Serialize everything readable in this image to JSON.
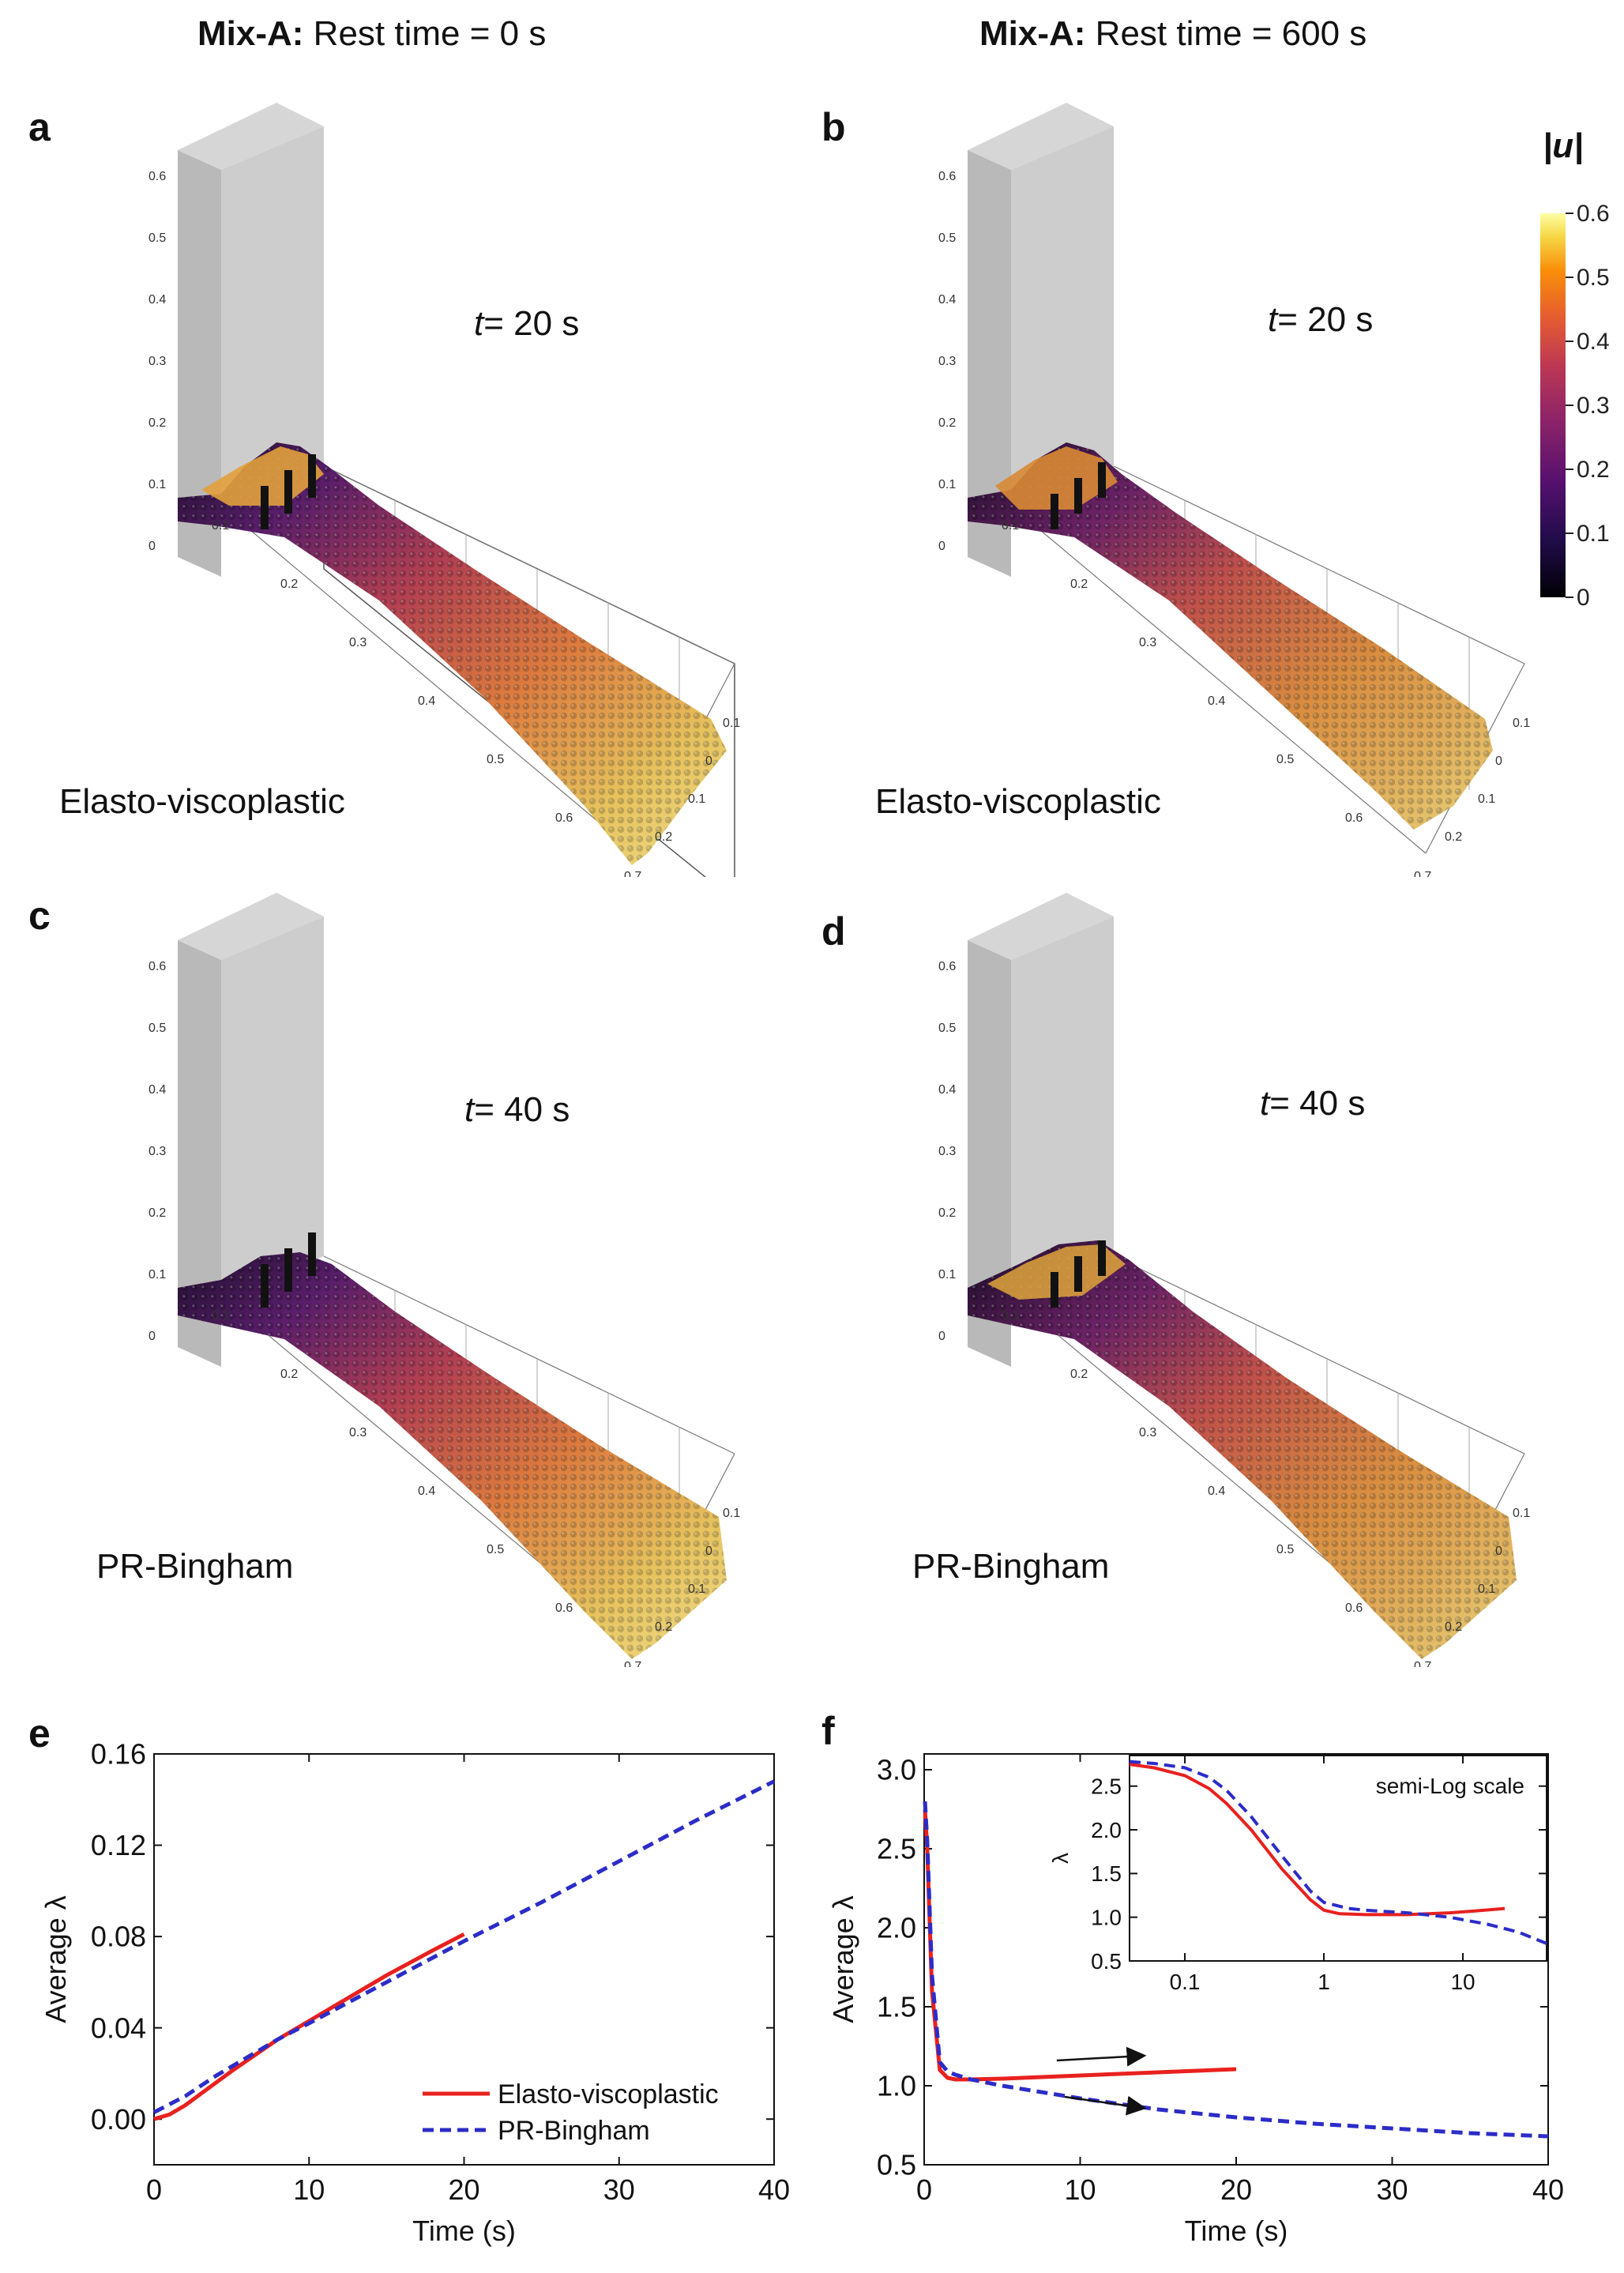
{
  "columns": {
    "left": {
      "title_bold": "Mix-A:",
      "title_rest": " Rest time = 0 s"
    },
    "right": {
      "title_bold": "Mix-A:",
      "title_rest": " Rest time = 600 s"
    }
  },
  "panels": {
    "a": {
      "letter": "a",
      "time_prefix": "t",
      "time_rest": "= 20 s",
      "model": "Elasto-viscoplastic"
    },
    "b": {
      "letter": "b",
      "time_prefix": "t",
      "time_rest": "= 20 s",
      "model": "Elasto-viscoplastic"
    },
    "c": {
      "letter": "c",
      "time_prefix": "t",
      "time_rest": "= 40 s",
      "model": "PR-Bingham"
    },
    "d": {
      "letter": "d",
      "time_prefix": "t",
      "time_rest": "= 40 s",
      "model": "PR-Bingham"
    },
    "e": {
      "letter": "e"
    },
    "f": {
      "letter": "f"
    }
  },
  "scene_axes": {
    "vertical_ticks": [
      "0.6",
      "0.5",
      "0.4",
      "0.3",
      "0.2",
      "0.1",
      "0"
    ],
    "length_ticks": [
      "0.1",
      "0.2",
      "0.3",
      "0.4",
      "0.5",
      "0.6",
      "0.7"
    ],
    "width_ticks": [
      "0.1",
      "0",
      "0.1",
      "0.2"
    ]
  },
  "colorbar": {
    "title": "|u|",
    "ticks": [
      "0.6",
      "0.5",
      "0.4",
      "0.3",
      "0.2",
      "0.1",
      "0"
    ]
  },
  "colors": {
    "red": "#e8211f",
    "blue": "#2c2cc8",
    "box": "#c9c9c9",
    "fluid_hot": "#f3d66a",
    "fluid_mid": "#c8493f",
    "fluid_cold": "#1d0f2c"
  },
  "chart_data": [
    {
      "id": "e",
      "type": "line",
      "title": "",
      "xlabel": "Time (s)",
      "ylabel": "Average λ",
      "xlim": [
        0,
        40
      ],
      "ylim": [
        -0.02,
        0.16
      ],
      "xticks": [
        0,
        10,
        20,
        30,
        40
      ],
      "yticks": [
        0.0,
        0.04,
        0.08,
        0.12,
        0.16
      ],
      "ytick_labels": [
        "0.00",
        "0.04",
        "0.08",
        "0.12",
        "0.16"
      ],
      "legend": "bottom-right",
      "series": [
        {
          "name": "Elasto-viscoplastic",
          "style": "solid",
          "color": "#e8211f",
          "x": [
            0,
            1,
            2,
            3,
            5,
            8,
            10,
            12,
            15,
            18,
            20
          ],
          "y": [
            0.0,
            0.002,
            0.006,
            0.011,
            0.021,
            0.035,
            0.043,
            0.051,
            0.063,
            0.074,
            0.081
          ]
        },
        {
          "name": "PR-Bingham",
          "style": "dashed",
          "color": "#2c2cc8",
          "x": [
            0,
            2,
            4,
            6,
            8,
            10,
            15,
            20,
            25,
            30,
            35,
            40
          ],
          "y": [
            0.003,
            0.01,
            0.019,
            0.027,
            0.035,
            0.042,
            0.06,
            0.078,
            0.095,
            0.113,
            0.131,
            0.148
          ]
        }
      ]
    },
    {
      "id": "f",
      "type": "line",
      "title": "",
      "xlabel": "Time (s)",
      "ylabel": "Average λ",
      "xlim": [
        0,
        40
      ],
      "ylim": [
        0.5,
        3.1
      ],
      "xticks": [
        0,
        10,
        20,
        30,
        40
      ],
      "yticks": [
        0.5,
        1.0,
        1.5,
        2.0,
        2.5,
        3.0
      ],
      "ytick_labels": [
        "0.5",
        "1.0",
        "1.5",
        "2.0",
        "2.5",
        "3.0"
      ],
      "series": [
        {
          "name": "Elasto-viscoplastic",
          "style": "solid",
          "color": "#e8211f",
          "x": [
            0.05,
            0.2,
            0.5,
            1.0,
            1.5,
            2,
            3,
            5,
            10,
            15,
            20
          ],
          "y": [
            2.75,
            2.5,
            1.6,
            1.1,
            1.05,
            1.04,
            1.04,
            1.045,
            1.065,
            1.085,
            1.105
          ]
        },
        {
          "name": "PR-Bingham",
          "style": "dashed",
          "color": "#2c2cc8",
          "x": [
            0.05,
            0.2,
            0.5,
            1.0,
            1.5,
            2,
            3,
            5,
            10,
            15,
            20,
            25,
            30,
            35,
            40
          ],
          "y": [
            2.8,
            2.55,
            1.7,
            1.15,
            1.09,
            1.07,
            1.04,
            1.0,
            0.92,
            0.85,
            0.8,
            0.76,
            0.73,
            0.7,
            0.68
          ]
        }
      ],
      "inset": {
        "annotation": "semi-Log scale",
        "ylabel": "λ",
        "xscale": "log",
        "xlim": [
          0.04,
          40
        ],
        "ylim": [
          0.5,
          2.85
        ],
        "xticks": [
          0.1,
          1,
          10
        ],
        "xtick_labels": [
          "0.1",
          "1",
          "10"
        ],
        "yticks": [
          0.5,
          1.0,
          1.5,
          2.0,
          2.5
        ],
        "ytick_labels": [
          "0.5",
          "1.0",
          "1.5",
          "2.0",
          "2.5"
        ],
        "series": [
          {
            "name": "Elasto-viscoplastic",
            "style": "solid",
            "color": "#e8211f",
            "x": [
              0.04,
              0.06,
              0.1,
              0.15,
              0.2,
              0.3,
              0.5,
              0.8,
              1.0,
              1.3,
              2,
              4,
              8,
              12,
              20
            ],
            "y": [
              2.75,
              2.71,
              2.62,
              2.47,
              2.3,
              2.0,
              1.55,
              1.2,
              1.08,
              1.04,
              1.03,
              1.03,
              1.05,
              1.07,
              1.1
            ]
          },
          {
            "name": "PR-Bingham",
            "style": "dashed",
            "color": "#2c2cc8",
            "x": [
              0.04,
              0.06,
              0.1,
              0.15,
              0.2,
              0.3,
              0.5,
              0.8,
              1.0,
              1.5,
              2,
              4,
              8,
              15,
              25,
              40
            ],
            "y": [
              2.78,
              2.76,
              2.71,
              2.6,
              2.45,
              2.15,
              1.7,
              1.3,
              1.17,
              1.1,
              1.08,
              1.05,
              1.0,
              0.92,
              0.83,
              0.7
            ]
          }
        ]
      }
    }
  ]
}
